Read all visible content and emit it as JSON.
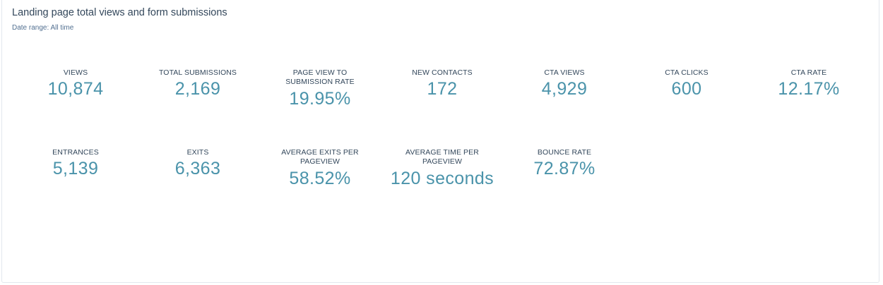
{
  "report": {
    "title": "Landing page total views and form submissions",
    "date_range": "Date range: All time"
  },
  "metrics_row1": [
    {
      "label": "VIEWS",
      "value": "10,874"
    },
    {
      "label": "TOTAL SUBMISSIONS",
      "value": "2,169"
    },
    {
      "label": "PAGE VIEW TO SUBMISSION RATE",
      "value": "19.95%"
    },
    {
      "label": "NEW CONTACTS",
      "value": "172"
    },
    {
      "label": "CTA VIEWS",
      "value": "4,929"
    },
    {
      "label": "CTA CLICKS",
      "value": "600"
    },
    {
      "label": "CTA RATE",
      "value": "12.17%"
    }
  ],
  "metrics_row2": [
    {
      "label": "ENTRANCES",
      "value": "5,139"
    },
    {
      "label": "EXITS",
      "value": "6,363"
    },
    {
      "label": "AVERAGE EXITS PER PAGEVIEW",
      "value": "58.52%"
    },
    {
      "label": "AVERAGE TIME PER PAGEVIEW",
      "value": "120 seconds"
    },
    {
      "label": "BOUNCE RATE",
      "value": "72.87%"
    }
  ],
  "colors": {
    "value_accent": "#4a93aa",
    "label_text": "#33475b",
    "subtitle_text": "#516f90"
  }
}
